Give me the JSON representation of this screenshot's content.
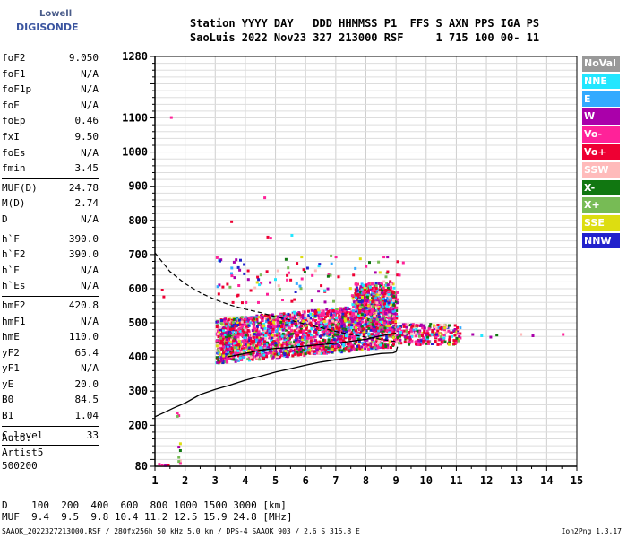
{
  "logo": {
    "line1": "Lowell",
    "line2": "DIGISONDE"
  },
  "header": {
    "line1": "Station YYYY DAY   DDD HHMMSS P1  FFS S AXN PPS IGA PS",
    "line2": "SaoLuis 2022 Nov23 327 213000 RSF     1 715 100 00- 11"
  },
  "params": [
    {
      "name": "foF2",
      "value": "9.050"
    },
    {
      "name": "foF1",
      "value": "N/A"
    },
    {
      "name": "foF1p",
      "value": "N/A"
    },
    {
      "name": "foE",
      "value": "N/A"
    },
    {
      "name": "foEp",
      "value": "0.46"
    },
    {
      "name": "fxI",
      "value": "9.50"
    },
    {
      "name": "foEs",
      "value": "N/A"
    },
    {
      "name": "fmin",
      "value": "3.45",
      "sep": true
    },
    {
      "name": "MUF(D)",
      "value": "24.78"
    },
    {
      "name": "M(D)",
      "value": "2.74"
    },
    {
      "name": "D",
      "value": "N/A",
      "sep": true
    },
    {
      "name": "h`F",
      "value": "390.0"
    },
    {
      "name": "h`F2",
      "value": "390.0"
    },
    {
      "name": "h`E",
      "value": "N/A"
    },
    {
      "name": "h`Es",
      "value": "N/A",
      "sep": true
    },
    {
      "name": "hmF2",
      "value": "420.8"
    },
    {
      "name": "hmF1",
      "value": "N/A"
    },
    {
      "name": "hmE",
      "value": "110.0"
    },
    {
      "name": "yF2",
      "value": "65.4"
    },
    {
      "name": "yF1",
      "value": "N/A"
    },
    {
      "name": "yE",
      "value": "20.0"
    },
    {
      "name": "B0",
      "value": "84.5"
    },
    {
      "name": "B1",
      "value": "1.04",
      "sep": true
    },
    {
      "name": "C-level",
      "value": "33",
      "sep": true
    }
  ],
  "auto": {
    "line1": "Auto:",
    "line2": "Artist5",
    "line3": "500200"
  },
  "legend": [
    {
      "label": "NoVal",
      "color": "#999999",
      "text": "#ffffff"
    },
    {
      "label": "NNE",
      "color": "#22e6ff",
      "text": "#ffffff"
    },
    {
      "label": "E",
      "color": "#33aaff",
      "text": "#ffffff"
    },
    {
      "label": "W",
      "color": "#aa00aa",
      "text": "#ffffff"
    },
    {
      "label": "Vo-",
      "color": "#ff2299",
      "text": "#ffffff"
    },
    {
      "label": "Vo+",
      "color": "#ee0033",
      "text": "#ffffff"
    },
    {
      "label": "SSW",
      "color": "#ffbbbb",
      "text": "#ffffff"
    },
    {
      "label": "X-",
      "color": "#117711",
      "text": "#ffffff"
    },
    {
      "label": "X+",
      "color": "#77bb55",
      "text": "#ffffff"
    },
    {
      "label": "SSE",
      "color": "#dddd11",
      "text": "#ffffff"
    },
    {
      "label": "NNW",
      "color": "#2222cc",
      "text": "#ffffff"
    }
  ],
  "bottom": {
    "line1": "D    100  200  400  600  800 1000 1500 3000 [km]",
    "line2": "MUF  9.4  9.5  9.8 10.4 11.2 12.5 15.9 24.8 [MHz]"
  },
  "footer": {
    "left": "SAAOK_2022327213000.RSF / 280fx256h 50 kHz 5.0 km / DPS-4 SAAOK 903 / 2.6 S 315.8 E",
    "right": "Ion2Png 1.3.17"
  },
  "chart_data": {
    "type": "scatter",
    "xlim": [
      1,
      15
    ],
    "ylim": [
      80,
      1280
    ],
    "x_ticks": [
      "1",
      "2",
      "3",
      "4",
      "5",
      "6",
      "7",
      "8",
      "9",
      "10",
      "11",
      "12",
      "13",
      "14",
      "15"
    ],
    "y_ticks": [
      "80",
      "200",
      "300",
      "400",
      "500",
      "600",
      "700",
      "800",
      "900",
      "1000",
      "1100",
      "1280"
    ],
    "grid": true,
    "profile_curve": {
      "x": [
        1.0,
        1.3,
        1.6,
        2.0,
        2.5,
        3.0,
        3.5,
        4.0,
        4.5,
        5.0,
        5.5,
        6.0,
        6.5,
        7.0,
        7.5,
        8.0,
        8.5,
        8.9,
        9.0,
        9.05
      ],
      "y": [
        225,
        237,
        250,
        265,
        290,
        305,
        318,
        332,
        344,
        356,
        366,
        376,
        385,
        392,
        398,
        404,
        410,
        412,
        415,
        430
      ]
    },
    "dashed_curve": {
      "x": [
        1.0,
        1.5,
        2.0,
        2.5,
        3.0,
        3.5,
        4.0,
        4.5,
        5.0,
        5.5,
        6.0,
        6.5,
        7.0,
        7.5,
        8.0,
        8.5,
        9.0
      ],
      "y": [
        705,
        650,
        615,
        588,
        568,
        552,
        540,
        530,
        518,
        508,
        496,
        486,
        475,
        466,
        458,
        452,
        445
      ]
    },
    "trace_curve": {
      "x": [
        3.4,
        4.0,
        4.5,
        5.0,
        5.5,
        6.0,
        6.5,
        7.0,
        7.5,
        8.0,
        8.5,
        9.0
      ],
      "y": [
        400,
        410,
        420,
        425,
        428,
        432,
        436,
        440,
        446,
        452,
        462,
        470
      ]
    }
  }
}
